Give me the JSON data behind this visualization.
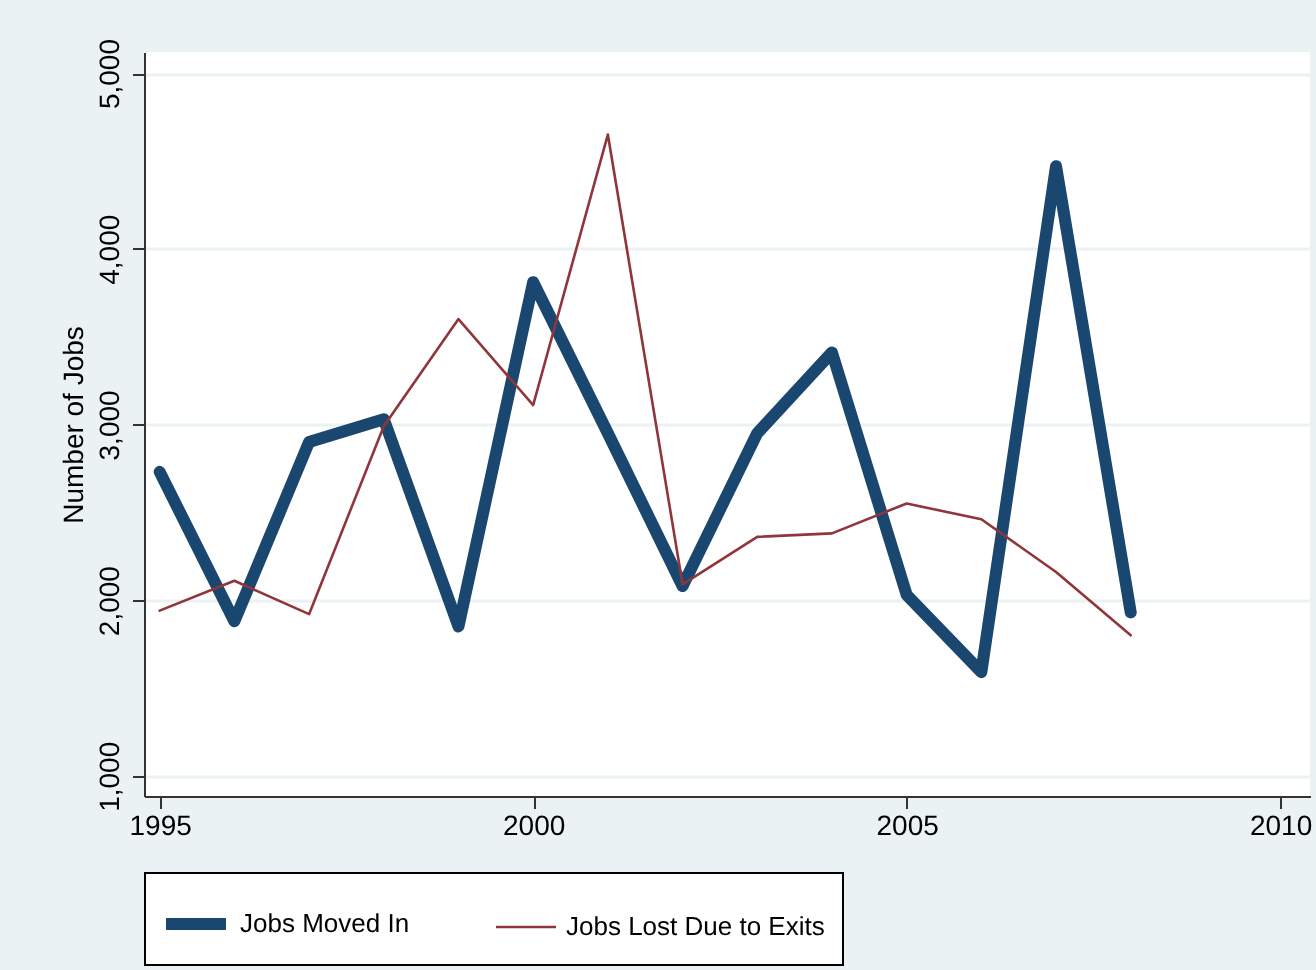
{
  "chart_data": {
    "type": "line",
    "ylabel": "Number of Jobs",
    "x": [
      1995,
      1996,
      1997,
      1998,
      1999,
      2000,
      2001,
      2002,
      2003,
      2004,
      2005,
      2006,
      2007,
      2008
    ],
    "series": [
      {
        "name": "Jobs Moved In",
        "color": "#1a476f",
        "values": [
          2730,
          1880,
          2900,
          3030,
          1850,
          3810,
          2950,
          2080,
          2950,
          3410,
          2030,
          1590,
          4470,
          1930
        ]
      },
      {
        "name": "Jobs Lost Due to Exits",
        "color": "#90353b",
        "values": [
          1940,
          2110,
          1920,
          2990,
          3600,
          3110,
          4650,
          2090,
          2360,
          2380,
          2550,
          2460,
          2160,
          1800
        ]
      }
    ],
    "xlim": [
      1994.79,
      2010.4
    ],
    "xticks": [
      1995,
      2000,
      2005,
      2010
    ],
    "ylim": [
      885,
      5120
    ],
    "yticks": [
      {
        "value": 1000,
        "label": "1,000"
      },
      {
        "value": 2000,
        "label": "2,000"
      },
      {
        "value": 3000,
        "label": "3,000"
      },
      {
        "value": 4000,
        "label": "4,000"
      },
      {
        "value": 5000,
        "label": "5,000"
      }
    ],
    "grid": "y",
    "legend": "bottom",
    "line_style": "solid",
    "marker": "none"
  }
}
